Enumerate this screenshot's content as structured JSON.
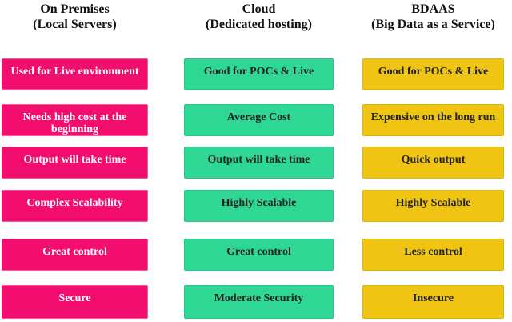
{
  "columns": [
    {
      "title": "On Premises",
      "subtitle": "(Local Servers)",
      "box_color": "#F30D6E",
      "box_text_color": "#FFFFFF",
      "box_border_color": "#F7569B",
      "boxes": [
        "Used for Live environment",
        "Needs high cost at the beginning",
        "Output will take time",
        "Complex Scalability",
        "Great control",
        "Secure"
      ]
    },
    {
      "title": "Cloud",
      "subtitle": "(Dedicated hosting)",
      "box_color": "#2FD795",
      "box_text_color": "#222222",
      "box_border_color": "#29C287",
      "boxes": [
        "Good for POCs & Live",
        "Average Cost",
        "Output will take time",
        "Highly Scalable",
        "Great control",
        "Moderate Security"
      ]
    },
    {
      "title": "BDAAS",
      "subtitle": "(Big Data as a Service)",
      "box_color": "#F0C413",
      "box_text_color": "#222222",
      "box_border_color": "#DEB511",
      "boxes": [
        "Good for POCs & Live",
        "Expensive on the long run",
        "Quick output",
        "Highly Scalable",
        "Less control",
        "Insecure"
      ]
    }
  ]
}
